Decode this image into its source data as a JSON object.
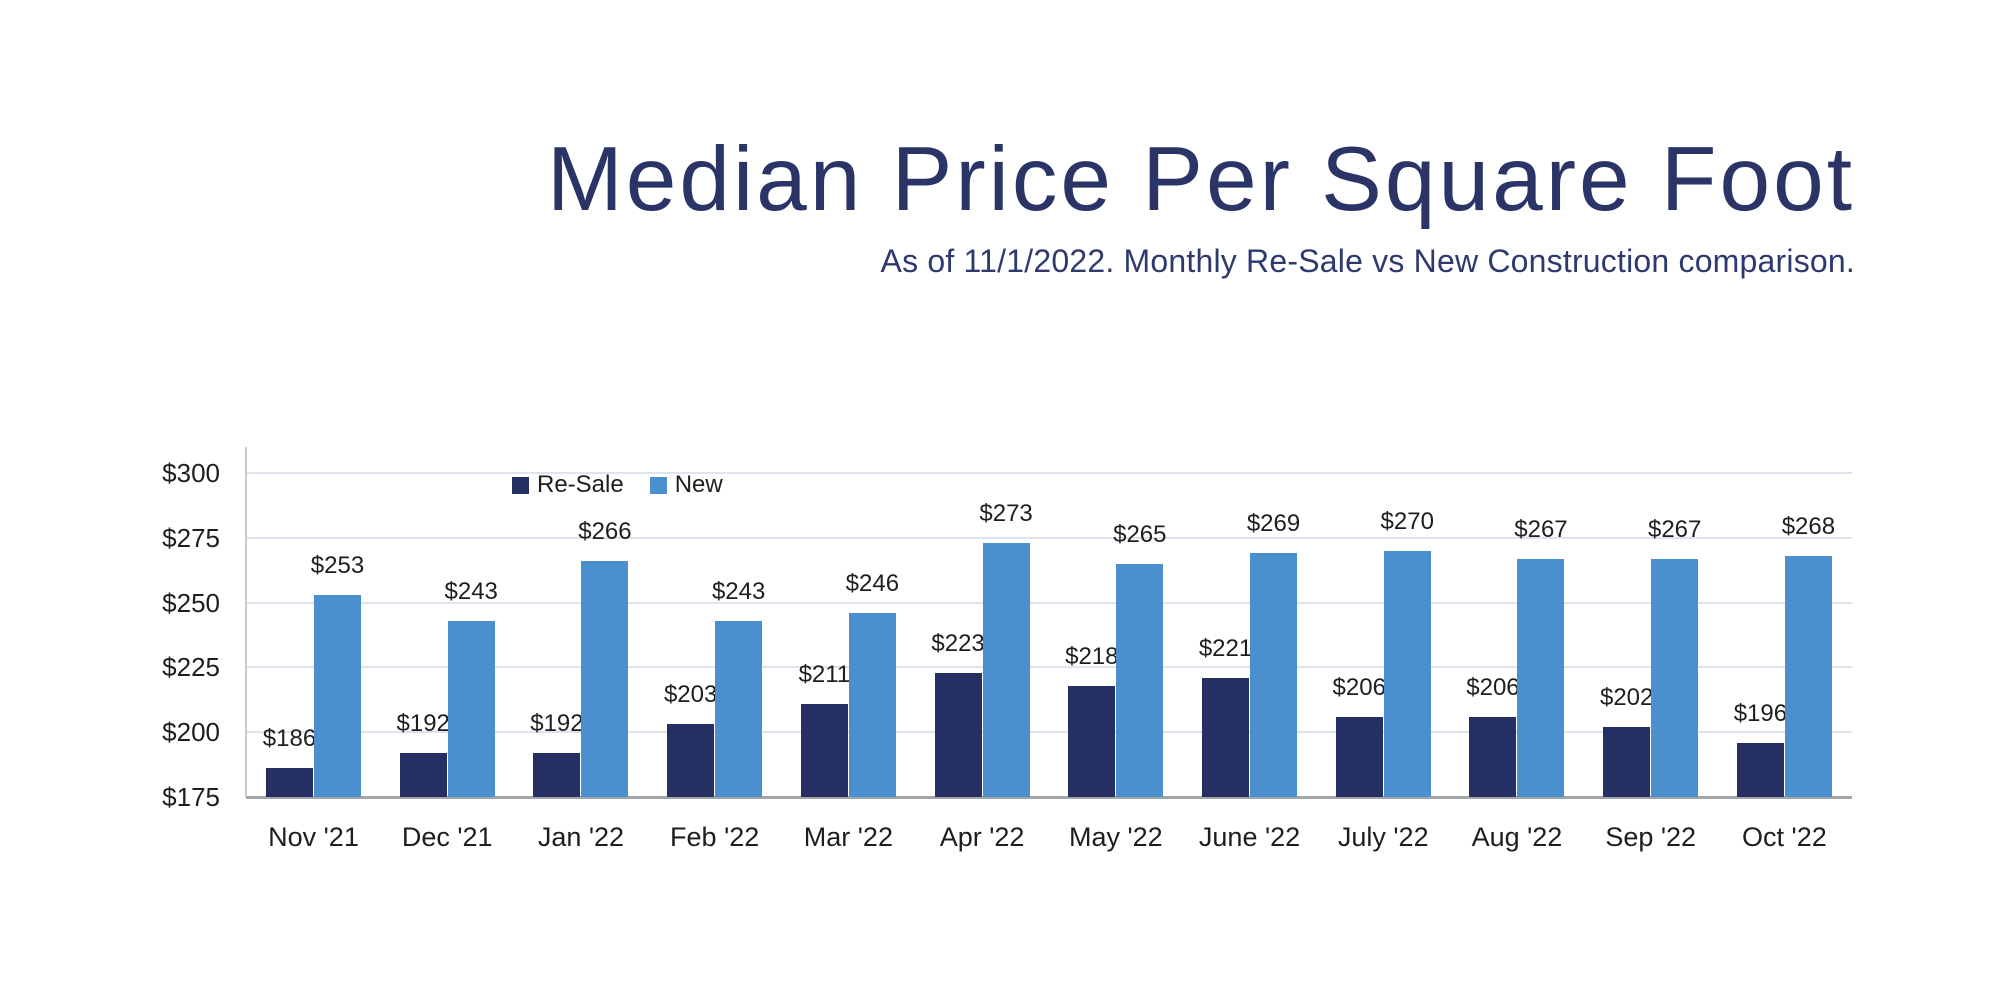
{
  "header": {
    "title": "Median Price Per Square Foot",
    "subtitle": "As of 11/1/2022. Monthly Re-Sale vs New Construction comparison."
  },
  "chart_data": {
    "type": "bar",
    "title": "Median Price Per Square Foot",
    "subtitle": "As of 11/1/2022. Monthly Re-Sale vs New Construction comparison.",
    "categories": [
      "Nov '21",
      "Dec '21",
      "Jan '22",
      "Feb '22",
      "Mar '22",
      "Apr '22",
      "May '22",
      "June '22",
      "July '22",
      "Aug '22",
      "Sep '22",
      "Oct '22"
    ],
    "series": [
      {
        "name": "Re-Sale",
        "color": "#262f63",
        "values": [
          186,
          192,
          192,
          203,
          211,
          223,
          218,
          221,
          206,
          206,
          202,
          196
        ]
      },
      {
        "name": "New",
        "color": "#4c8fce",
        "values": [
          253,
          243,
          266,
          243,
          246,
          273,
          265,
          269,
          270,
          267,
          267,
          268
        ]
      }
    ],
    "value_prefix": "$",
    "data_labels": [
      "$186",
      "$253",
      "$192",
      "$243",
      "$192",
      "$266",
      "$203",
      "$243",
      "$211",
      "$246",
      "$223",
      "$273",
      "$218",
      "$265",
      "$221",
      "$269",
      "$206",
      "$270",
      "$206",
      "$267",
      "$202",
      "$267",
      "$196",
      "$268"
    ],
    "y_axis": {
      "min": 175,
      "max": 300,
      "step": 25,
      "tick_labels": [
        "$175",
        "$200",
        "$225",
        "$250",
        "$275",
        "$300"
      ]
    },
    "xlabel": "",
    "ylabel": "",
    "grid": true,
    "legend_position": "inside-top-left",
    "colors": {
      "grid": "#dde4ee",
      "axis_left": "#c9cbd0",
      "axis_bottom": "#a2a5a9",
      "text": "#1e1e1e",
      "title": "#2b3467",
      "subtitle": "#2e3a6e",
      "background": "#ffffff"
    }
  }
}
